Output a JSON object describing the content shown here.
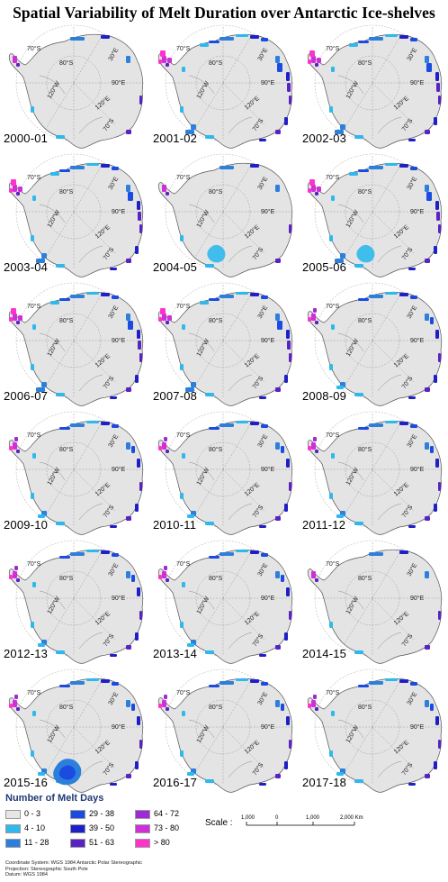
{
  "title": "Spatial Variability of Melt Duration over Antarctic Ice-shelves",
  "map_labels": {
    "lat_70": "70°S",
    "lat_80": "80°S",
    "lon_30e": "30°E",
    "lon_90e": "90°E",
    "lon_120e": "120°E",
    "lon_120w": "120°W",
    "lat_70_bottom": "70°S"
  },
  "panels": [
    {
      "year": "2000-01",
      "pattern": "low",
      "ross": 0
    },
    {
      "year": "2001-02",
      "pattern": "high",
      "ross": 0
    },
    {
      "year": "2002-03",
      "pattern": "high",
      "ross": 0
    },
    {
      "year": "2003-04",
      "pattern": "high",
      "ross": 0
    },
    {
      "year": "2004-05",
      "pattern": "low",
      "ross": 1
    },
    {
      "year": "2005-06",
      "pattern": "high",
      "ross": 1
    },
    {
      "year": "2006-07",
      "pattern": "high",
      "ross": 0
    },
    {
      "year": "2007-08",
      "pattern": "high",
      "ross": 0
    },
    {
      "year": "2008-09",
      "pattern": "mid",
      "ross": 0
    },
    {
      "year": "2009-10",
      "pattern": "mid",
      "ross": 0
    },
    {
      "year": "2010-11",
      "pattern": "mid",
      "ross": 0
    },
    {
      "year": "2011-12",
      "pattern": "mid",
      "ross": 0
    },
    {
      "year": "2012-13",
      "pattern": "mid",
      "ross": 0
    },
    {
      "year": "2013-14",
      "pattern": "mid",
      "ross": 0
    },
    {
      "year": "2014-15",
      "pattern": "low",
      "ross": 0
    },
    {
      "year": "2015-16",
      "pattern": "mid",
      "ross": 2
    },
    {
      "year": "2016-17",
      "pattern": "mid",
      "ross": 0
    },
    {
      "year": "2017-18",
      "pattern": "mid",
      "ross": 0
    }
  ],
  "legend": {
    "title": "Number of Melt Days",
    "items": [
      {
        "label": "0 - 3",
        "color": "#e6e6e6"
      },
      {
        "label": "4 - 10",
        "color": "#2fb8ec"
      },
      {
        "label": "11 - 28",
        "color": "#2c80dc"
      },
      {
        "label": "29 - 38",
        "color": "#1b4be0"
      },
      {
        "label": "39 - 50",
        "color": "#1f1fc8"
      },
      {
        "label": "51 - 63",
        "color": "#5a22c4"
      },
      {
        "label": "64 - 72",
        "color": "#9e2ad8"
      },
      {
        "label": "73 - 80",
        "color": "#cf2fd8"
      },
      {
        "label": "> 80",
        "color": "#ff33cc"
      }
    ]
  },
  "scale_bar": {
    "title": "Scale :",
    "ticks": [
      "1,000",
      "0",
      "1,000",
      "2,000 Km"
    ]
  },
  "metadata": {
    "coordinate_system": "Coordinate System: WGS 1984 Antarctic Polar Stereographic",
    "projection": "Projection: Stereographic South Pole",
    "datum": "Datum: WGS 1984"
  }
}
